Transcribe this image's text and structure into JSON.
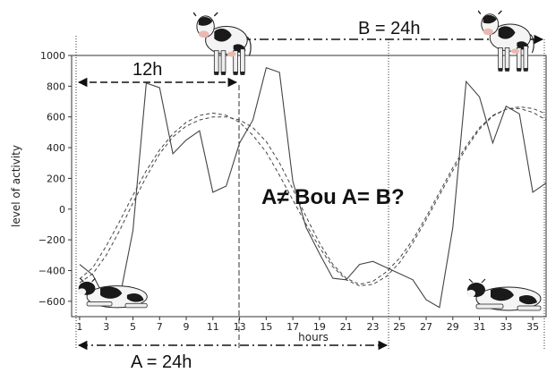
{
  "chart_data": {
    "type": "line",
    "xlabel": "hours",
    "ylabel": "level of activity",
    "xlim": [
      0.4,
      36
    ],
    "ylim": [
      -700,
      1000
    ],
    "x_ticks": [
      1,
      3,
      5,
      7,
      9,
      11,
      13,
      15,
      17,
      19,
      21,
      23,
      25,
      27,
      29,
      31,
      33,
      35
    ],
    "y_ticks": [
      -600,
      -400,
      -200,
      0,
      200,
      400,
      600,
      800,
      1000
    ],
    "grid": false,
    "series": [
      {
        "style": "solid",
        "x": [
          1,
          2,
          3,
          4,
          5,
          6,
          7,
          8,
          9,
          10,
          11,
          12,
          13,
          14,
          15,
          16,
          17,
          18,
          19,
          20,
          21,
          22,
          23,
          24,
          25,
          26,
          27,
          28,
          29,
          30,
          31,
          32,
          33,
          34,
          35,
          36
        ],
        "y": [
          -360,
          -430,
          -600,
          -580,
          -140,
          820,
          790,
          360,
          450,
          510,
          110,
          150,
          430,
          580,
          920,
          890,
          180,
          -120,
          -290,
          -450,
          -460,
          -360,
          -340,
          -380,
          -420,
          -460,
          -590,
          -640,
          -120,
          830,
          730,
          430,
          670,
          620,
          110,
          170
        ]
      },
      {
        "style": "dashed",
        "x": [
          1,
          2,
          3,
          4,
          5,
          6,
          7,
          8,
          9,
          10,
          11,
          12,
          13,
          14,
          15,
          16,
          17,
          18,
          19,
          20,
          21,
          22,
          23,
          24,
          25,
          26,
          27,
          28,
          29,
          30,
          31,
          32,
          33,
          34,
          35,
          36
        ],
        "y": [
          -455,
          -380,
          -240,
          -80,
          90,
          250,
          385,
          490,
          565,
          610,
          625,
          610,
          565,
          480,
          370,
          220,
          60,
          -100,
          -250,
          -375,
          -460,
          -500,
          -490,
          -440,
          -350,
          -220,
          -70,
          90,
          250,
          395,
          520,
          605,
          650,
          665,
          655,
          620
        ]
      },
      {
        "style": "dashed",
        "x": [
          1,
          2,
          3,
          4,
          5,
          6,
          7,
          8,
          9,
          10,
          11,
          12,
          13,
          14,
          15,
          16,
          17,
          18,
          19,
          20,
          21,
          22,
          23,
          24,
          25,
          26,
          27,
          28,
          29,
          30,
          31,
          32,
          33,
          34,
          35,
          36
        ],
        "y": [
          -480,
          -420,
          -300,
          -140,
          40,
          210,
          360,
          470,
          540,
          580,
          600,
          600,
          580,
          530,
          440,
          300,
          130,
          -50,
          -220,
          -360,
          -450,
          -490,
          -470,
          -410,
          -320,
          -200,
          -50,
          110,
          270,
          410,
          530,
          610,
          650,
          655,
          630,
          580
        ]
      }
    ]
  },
  "annotations": {
    "top_span_label": "B = 24h",
    "bottom_span_label": "A = 24h",
    "half_span_label": "12h",
    "question": "A≠ Bou A= B?"
  },
  "images": [
    "cow-standing-icon",
    "cow-lying-icon"
  ]
}
